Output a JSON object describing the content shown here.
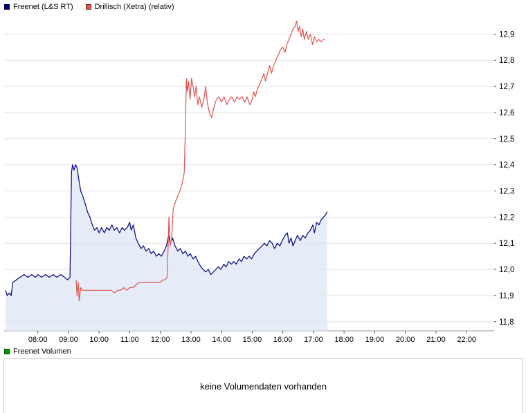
{
  "legend": {
    "series1": "Freenet (L&S RT)",
    "series2": "Drillisch (Xetra) (relativ)",
    "volume": "Freenet Volumen"
  },
  "colors": {
    "series1": "#000080",
    "series1_fill": "#dce5f5",
    "series2": "#e0524d",
    "volume": "#009900",
    "grid": "#e2e2e2",
    "axis_line": "#9a9a9a",
    "tick": "#555555"
  },
  "volume_panel": {
    "message": "keine Volumendaten vorhanden"
  },
  "chart_data": {
    "type": "line",
    "title": "",
    "x_axis": {
      "min": 6.9,
      "max": 22.9,
      "ticks": [
        {
          "hour": 8,
          "label": "08:00"
        },
        {
          "hour": 9,
          "label": "09:00"
        },
        {
          "hour": 10,
          "label": "10:00"
        },
        {
          "hour": 11,
          "label": "11:00"
        },
        {
          "hour": 12,
          "label": "12:00"
        },
        {
          "hour": 13,
          "label": "13:00"
        },
        {
          "hour": 14,
          "label": "14:00"
        },
        {
          "hour": 15,
          "label": "15:00"
        },
        {
          "hour": 16,
          "label": "16:00"
        },
        {
          "hour": 17,
          "label": "17:00"
        },
        {
          "hour": 18,
          "label": "18:00"
        },
        {
          "hour": 19,
          "label": "19:00"
        },
        {
          "hour": 20,
          "label": "20:00"
        },
        {
          "hour": 21,
          "label": "21:00"
        },
        {
          "hour": 22,
          "label": "22:00"
        }
      ]
    },
    "y_axis": {
      "min": 11.765,
      "max": 12.975,
      "ticks": [
        {
          "value": 12.9,
          "label": "12,9"
        },
        {
          "value": 12.8,
          "label": "12,8"
        },
        {
          "value": 12.7,
          "label": "12,7"
        },
        {
          "value": 12.6,
          "label": "12,6"
        },
        {
          "value": 12.5,
          "label": "12,5"
        },
        {
          "value": 12.4,
          "label": "12,4"
        },
        {
          "value": 12.3,
          "label": "12,3"
        },
        {
          "value": 12.2,
          "label": "12,2"
        },
        {
          "value": 12.1,
          "label": "12,1"
        },
        {
          "value": 12.0,
          "label": "12,0"
        },
        {
          "value": 11.9,
          "label": "11,9"
        },
        {
          "value": 11.8,
          "label": "11,8"
        }
      ]
    },
    "series": [
      {
        "name": "Freenet (L&S RT)",
        "color": "#000080",
        "area": true,
        "fill": "#dce5f5",
        "points": [
          [
            6.95,
            11.92
          ],
          [
            7.0,
            11.9
          ],
          [
            7.07,
            11.91
          ],
          [
            7.13,
            11.9
          ],
          [
            7.18,
            11.95
          ],
          [
            7.3,
            11.96
          ],
          [
            7.42,
            11.97
          ],
          [
            7.55,
            11.98
          ],
          [
            7.67,
            11.97
          ],
          [
            7.8,
            11.98
          ],
          [
            7.92,
            11.97
          ],
          [
            8.0,
            11.98
          ],
          [
            8.12,
            11.97
          ],
          [
            8.25,
            11.98
          ],
          [
            8.37,
            11.97
          ],
          [
            8.5,
            11.98
          ],
          [
            8.62,
            11.97
          ],
          [
            8.75,
            11.98
          ],
          [
            8.87,
            11.97
          ],
          [
            8.97,
            11.96
          ],
          [
            9.05,
            11.97
          ],
          [
            9.1,
            12.37
          ],
          [
            9.13,
            12.4
          ],
          [
            9.18,
            12.38
          ],
          [
            9.23,
            12.4
          ],
          [
            9.28,
            12.39
          ],
          [
            9.33,
            12.35
          ],
          [
            9.4,
            12.3
          ],
          [
            9.47,
            12.28
          ],
          [
            9.55,
            12.25
          ],
          [
            9.62,
            12.22
          ],
          [
            9.7,
            12.2
          ],
          [
            9.78,
            12.17
          ],
          [
            9.85,
            12.15
          ],
          [
            9.93,
            12.16
          ],
          [
            10.0,
            12.14
          ],
          [
            10.08,
            12.16
          ],
          [
            10.17,
            12.14
          ],
          [
            10.25,
            12.16
          ],
          [
            10.33,
            12.15
          ],
          [
            10.42,
            12.17
          ],
          [
            10.5,
            12.15
          ],
          [
            10.58,
            12.16
          ],
          [
            10.67,
            12.14
          ],
          [
            10.75,
            12.16
          ],
          [
            10.83,
            12.15
          ],
          [
            10.92,
            12.16
          ],
          [
            11.0,
            12.18
          ],
          [
            11.05,
            12.15
          ],
          [
            11.12,
            12.17
          ],
          [
            11.2,
            12.12
          ],
          [
            11.28,
            12.1
          ],
          [
            11.37,
            12.08
          ],
          [
            11.45,
            12.09
          ],
          [
            11.53,
            12.07
          ],
          [
            11.62,
            12.08
          ],
          [
            11.7,
            12.06
          ],
          [
            11.78,
            12.07
          ],
          [
            11.87,
            12.05
          ],
          [
            11.95,
            12.06
          ],
          [
            12.03,
            12.05
          ],
          [
            12.12,
            12.07
          ],
          [
            12.2,
            12.09
          ],
          [
            12.27,
            12.13
          ],
          [
            12.32,
            12.1
          ],
          [
            12.4,
            12.12
          ],
          [
            12.48,
            12.09
          ],
          [
            12.57,
            12.07
          ],
          [
            12.65,
            12.08
          ],
          [
            12.73,
            12.06
          ],
          [
            12.82,
            12.07
          ],
          [
            12.9,
            12.05
          ],
          [
            12.98,
            12.06
          ],
          [
            13.07,
            12.04
          ],
          [
            13.15,
            12.05
          ],
          [
            13.23,
            12.03
          ],
          [
            13.32,
            12.01
          ],
          [
            13.4,
            12.0
          ],
          [
            13.48,
            11.99
          ],
          [
            13.57,
            12.0
          ],
          [
            13.65,
            11.98
          ],
          [
            13.73,
            11.99
          ],
          [
            13.82,
            12.0
          ],
          [
            13.9,
            12.01
          ],
          [
            13.98,
            12.0
          ],
          [
            14.07,
            12.02
          ],
          [
            14.15,
            12.01
          ],
          [
            14.23,
            12.03
          ],
          [
            14.32,
            12.02
          ],
          [
            14.4,
            12.03
          ],
          [
            14.48,
            12.02
          ],
          [
            14.57,
            12.04
          ],
          [
            14.65,
            12.03
          ],
          [
            14.73,
            12.05
          ],
          [
            14.82,
            12.04
          ],
          [
            14.9,
            12.05
          ],
          [
            14.98,
            12.04
          ],
          [
            15.07,
            12.06
          ],
          [
            15.15,
            12.07
          ],
          [
            15.23,
            12.08
          ],
          [
            15.32,
            12.09
          ],
          [
            15.4,
            12.1
          ],
          [
            15.48,
            12.09
          ],
          [
            15.57,
            12.11
          ],
          [
            15.65,
            12.1
          ],
          [
            15.73,
            12.08
          ],
          [
            15.82,
            12.1
          ],
          [
            15.9,
            12.09
          ],
          [
            15.98,
            12.11
          ],
          [
            16.07,
            12.13
          ],
          [
            16.15,
            12.14
          ],
          [
            16.2,
            12.1
          ],
          [
            16.27,
            12.12
          ],
          [
            16.33,
            12.09
          ],
          [
            16.4,
            12.11
          ],
          [
            16.48,
            12.13
          ],
          [
            16.57,
            12.11
          ],
          [
            16.65,
            12.13
          ],
          [
            16.73,
            12.12
          ],
          [
            16.82,
            12.14
          ],
          [
            16.9,
            12.15
          ],
          [
            16.98,
            12.17
          ],
          [
            17.03,
            12.14
          ],
          [
            17.1,
            12.18
          ],
          [
            17.18,
            12.17
          ],
          [
            17.25,
            12.19
          ],
          [
            17.33,
            12.2
          ],
          [
            17.4,
            12.21
          ],
          [
            17.45,
            12.22
          ]
        ]
      },
      {
        "name": "Drillisch (Xetra) (relativ)",
        "color": "#e0524d",
        "area": false,
        "points": [
          [
            9.25,
            11.96
          ],
          [
            9.28,
            11.9
          ],
          [
            9.32,
            11.95
          ],
          [
            9.35,
            11.88
          ],
          [
            9.4,
            11.93
          ],
          [
            9.45,
            11.92
          ],
          [
            9.53,
            11.92
          ],
          [
            9.62,
            11.92
          ],
          [
            9.7,
            11.92
          ],
          [
            9.8,
            11.92
          ],
          [
            9.9,
            11.92
          ],
          [
            10.0,
            11.92
          ],
          [
            10.1,
            11.92
          ],
          [
            10.2,
            11.92
          ],
          [
            10.3,
            11.92
          ],
          [
            10.4,
            11.92
          ],
          [
            10.5,
            11.91
          ],
          [
            10.6,
            11.92
          ],
          [
            10.7,
            11.92
          ],
          [
            10.8,
            11.93
          ],
          [
            10.9,
            11.92
          ],
          [
            11.0,
            11.93
          ],
          [
            11.1,
            11.93
          ],
          [
            11.2,
            11.94
          ],
          [
            11.3,
            11.95
          ],
          [
            11.4,
            11.95
          ],
          [
            11.5,
            11.95
          ],
          [
            11.6,
            11.95
          ],
          [
            11.7,
            11.95
          ],
          [
            11.8,
            11.95
          ],
          [
            11.9,
            11.95
          ],
          [
            12.0,
            11.95
          ],
          [
            12.08,
            11.96
          ],
          [
            12.15,
            11.96
          ],
          [
            12.22,
            11.97
          ],
          [
            12.25,
            12.07
          ],
          [
            12.28,
            12.2
          ],
          [
            12.32,
            12.09
          ],
          [
            12.37,
            12.12
          ],
          [
            12.42,
            12.23
          ],
          [
            12.47,
            12.25
          ],
          [
            12.53,
            12.27
          ],
          [
            12.6,
            12.29
          ],
          [
            12.67,
            12.31
          ],
          [
            12.73,
            12.34
          ],
          [
            12.78,
            12.37
          ],
          [
            12.82,
            12.55
          ],
          [
            12.85,
            12.73
          ],
          [
            12.88,
            12.68
          ],
          [
            12.92,
            12.72
          ],
          [
            12.97,
            12.65
          ],
          [
            13.02,
            12.73
          ],
          [
            13.07,
            12.7
          ],
          [
            13.12,
            12.66
          ],
          [
            13.17,
            12.7
          ],
          [
            13.22,
            12.63
          ],
          [
            13.28,
            12.66
          ],
          [
            13.35,
            12.62
          ],
          [
            13.42,
            12.65
          ],
          [
            13.48,
            12.7
          ],
          [
            13.53,
            12.64
          ],
          [
            13.6,
            12.6
          ],
          [
            13.67,
            12.58
          ],
          [
            13.75,
            12.62
          ],
          [
            13.83,
            12.65
          ],
          [
            13.92,
            12.66
          ],
          [
            14.0,
            12.64
          ],
          [
            14.08,
            12.66
          ],
          [
            14.17,
            12.63
          ],
          [
            14.25,
            12.65
          ],
          [
            14.33,
            12.66
          ],
          [
            14.42,
            12.64
          ],
          [
            14.5,
            12.66
          ],
          [
            14.58,
            12.65
          ],
          [
            14.67,
            12.66
          ],
          [
            14.75,
            12.64
          ],
          [
            14.83,
            12.66
          ],
          [
            14.92,
            12.63
          ],
          [
            15.0,
            12.65
          ],
          [
            15.05,
            12.68
          ],
          [
            15.1,
            12.66
          ],
          [
            15.17,
            12.69
          ],
          [
            15.25,
            12.71
          ],
          [
            15.32,
            12.73
          ],
          [
            15.38,
            12.75
          ],
          [
            15.43,
            12.72
          ],
          [
            15.5,
            12.75
          ],
          [
            15.57,
            12.78
          ],
          [
            15.63,
            12.75
          ],
          [
            15.7,
            12.78
          ],
          [
            15.77,
            12.8
          ],
          [
            15.85,
            12.82
          ],
          [
            15.92,
            12.84
          ],
          [
            16.0,
            12.85
          ],
          [
            16.07,
            12.83
          ],
          [
            16.13,
            12.86
          ],
          [
            16.2,
            12.88
          ],
          [
            16.27,
            12.9
          ],
          [
            16.33,
            12.92
          ],
          [
            16.4,
            12.93
          ],
          [
            16.45,
            12.95
          ],
          [
            16.5,
            12.91
          ],
          [
            16.55,
            12.93
          ],
          [
            16.6,
            12.89
          ],
          [
            16.65,
            12.92
          ],
          [
            16.7,
            12.88
          ],
          [
            16.77,
            12.91
          ],
          [
            16.83,
            12.88
          ],
          [
            16.9,
            12.9
          ],
          [
            16.97,
            12.86
          ],
          [
            17.03,
            12.89
          ],
          [
            17.1,
            12.87
          ],
          [
            17.17,
            12.88
          ],
          [
            17.25,
            12.87
          ],
          [
            17.32,
            12.88
          ],
          [
            17.38,
            12.88
          ]
        ]
      }
    ]
  }
}
